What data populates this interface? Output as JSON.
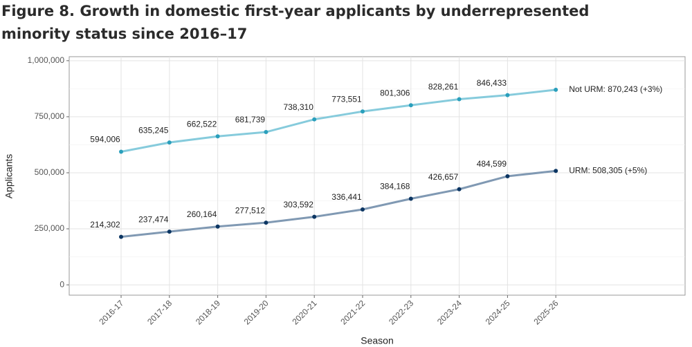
{
  "chart_data": {
    "type": "line",
    "title": "Figure 8. Growth in domestic first-year applicants by underrepresented minority status since 2016–17",
    "x_label": "Season",
    "y_label": "Applicants",
    "categories": [
      "2016-17",
      "2017-18",
      "2018-19",
      "2019-20",
      "2020-21",
      "2021-22",
      "2022-23",
      "2023-24",
      "2024-25",
      "2025-26"
    ],
    "series": [
      {
        "name": "Not URM",
        "color": "#86cbdc",
        "point_color": "#2a9fbc",
        "values": [
          594006,
          635245,
          662522,
          681739,
          738310,
          773551,
          801306,
          828261,
          846433,
          870243
        ],
        "value_labels": [
          "594,006",
          "635,245",
          "662,522",
          "681,739",
          "738,310",
          "773,551",
          "801,306",
          "828,261",
          "846,433",
          null
        ],
        "end_label": "Not URM: 870,243 (+3%)"
      },
      {
        "name": "URM",
        "color": "#8099b3",
        "point_color": "#0c3663",
        "values": [
          214302,
          237474,
          260164,
          277512,
          303592,
          336441,
          384168,
          426657,
          484599,
          508305
        ],
        "value_labels": [
          "214,302",
          "237,474",
          "260,164",
          "277,512",
          "303,592",
          "336,441",
          "384,168",
          "426,657",
          "484,599",
          null
        ],
        "end_label": "URM: 508,305 (+5%)"
      }
    ],
    "ylim": [
      -46000,
      1018000
    ],
    "yticks": [
      {
        "value": 0,
        "label": "0"
      },
      {
        "value": 250000,
        "label": "250,000"
      },
      {
        "value": 500000,
        "label": "500,000"
      },
      {
        "value": 750000,
        "label": "750,000"
      },
      {
        "value": 1000000,
        "label": "1,000,000"
      }
    ],
    "minor_yticks": [
      125000,
      375000,
      625000,
      875000
    ],
    "grid": true
  }
}
